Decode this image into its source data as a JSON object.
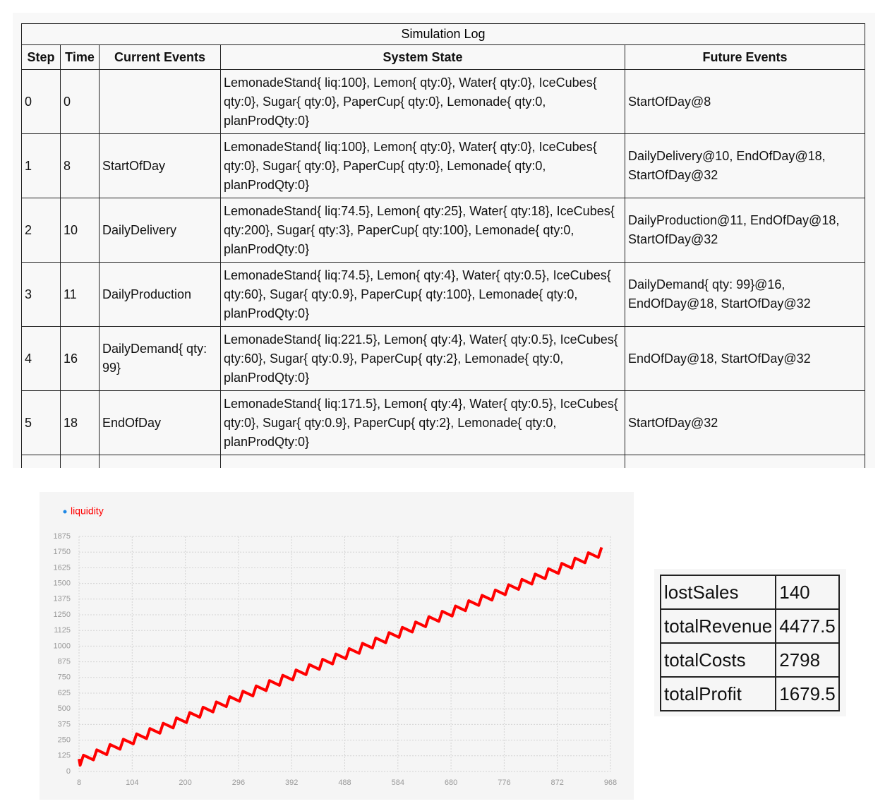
{
  "log": {
    "title": "Simulation Log",
    "headers": [
      "Step",
      "Time",
      "Current Events",
      "System State",
      "Future Events"
    ],
    "rows": [
      [
        0,
        0,
        null,
        "LemonadeStand{ liq:100}, Lemon{ qty:0}, Water{ qty:0}, IceCubes{ qty:0}, Sugar{ qty:0}, PaperCup{ qty:0}, Lemonade{ qty:0, planProdQty:0}",
        "StartOfDay@8"
      ],
      [
        1,
        8,
        "StartOfDay",
        "LemonadeStand{ liq:100}, Lemon{ qty:0}, Water{ qty:0}, IceCubes{ qty:0}, Sugar{ qty:0}, PaperCup{ qty:0}, Lemonade{ qty:0, planProdQty:0}",
        "DailyDelivery@10, EndOfDay@18, StartOfDay@32"
      ],
      [
        2,
        10,
        "DailyDelivery",
        "LemonadeStand{ liq:74.5}, Lemon{ qty:25}, Water{ qty:18}, IceCubes{ qty:200}, Sugar{ qty:3}, PaperCup{ qty:100}, Lemonade{ qty:0, planProdQty:0}",
        "DailyProduction@11, EndOfDay@18, StartOfDay@32"
      ],
      [
        3,
        11,
        "DailyProduction",
        "LemonadeStand{ liq:74.5}, Lemon{ qty:4}, Water{ qty:0.5}, IceCubes{ qty:60}, Sugar{ qty:0.9}, PaperCup{ qty:100}, Lemonade{ qty:0, planProdQty:0}",
        "DailyDemand{ qty: 99}@16, EndOfDay@18, StartOfDay@32"
      ],
      [
        4,
        16,
        "DailyDemand{ qty: 99}",
        "LemonadeStand{ liq:221.5}, Lemon{ qty:4}, Water{ qty:0.5}, IceCubes{ qty:60}, Sugar{ qty:0.9}, PaperCup{ qty:2}, Lemonade{ qty:0, planProdQty:0}",
        "EndOfDay@18, StartOfDay@32"
      ],
      [
        5,
        18,
        "EndOfDay",
        "LemonadeStand{ liq:171.5}, Lemon{ qty:4}, Water{ qty:0.5}, IceCubes{ qty:0}, Sugar{ qty:0.9}, PaperCup{ qty:2}, Lemonade{ qty:0, planProdQty:0}",
        "StartOfDay@32"
      ]
    ]
  },
  "chart_data": {
    "type": "line",
    "grid": true,
    "x": [
      8,
      10,
      16,
      34,
      40,
      58,
      64,
      82,
      88,
      106,
      112,
      130,
      136,
      154,
      160,
      178,
      184,
      202,
      208,
      226,
      232,
      250,
      256,
      274,
      280,
      298,
      304,
      322,
      328,
      346,
      352,
      370,
      376,
      394,
      400,
      418,
      424,
      442,
      448,
      466,
      472,
      490,
      496,
      514,
      520,
      538,
      544,
      562,
      568,
      586,
      592,
      610,
      616,
      634,
      640,
      658,
      664,
      682,
      688,
      706,
      712,
      730,
      736,
      754,
      760,
      778,
      784,
      802,
      808,
      826,
      832,
      850,
      856,
      874,
      880,
      898,
      904,
      922,
      928,
      946,
      952
    ],
    "series": [
      {
        "name": "liquidity",
        "color": "#ff0000",
        "values": [
          100,
          50,
          130,
          92.5,
          172.5,
          135,
          215,
          177.5,
          257.5,
          220,
          300,
          262.5,
          342.5,
          305,
          385,
          347.5,
          427.5,
          390,
          470,
          432.5,
          512.5,
          475,
          555,
          517.5,
          597.5,
          560,
          640,
          602.5,
          682.5,
          645,
          725,
          687.5,
          767.5,
          730,
          810,
          772.5,
          852.5,
          815,
          895,
          857.5,
          937.5,
          900,
          980,
          942.5,
          1022.5,
          985,
          1065,
          1027.5,
          1107.5,
          1070,
          1150,
          1112.5,
          1192.5,
          1155,
          1235,
          1197.5,
          1277.5,
          1240,
          1320,
          1282.5,
          1362.5,
          1325,
          1405,
          1367.5,
          1447.5,
          1410,
          1490,
          1452.5,
          1532.5,
          1495,
          1575,
          1537.5,
          1617.5,
          1580,
          1660,
          1622.5,
          1702.5,
          1665,
          1745,
          1707.5,
          1787.5
        ]
      }
    ],
    "xlim": [
      8,
      968
    ],
    "xticks": [
      8,
      104,
      200,
      296,
      392,
      488,
      584,
      680,
      776,
      872,
      968
    ],
    "ylim": [
      0,
      1875
    ],
    "yticks": [
      0,
      125,
      250,
      375,
      500,
      625,
      750,
      875,
      1000,
      1125,
      1250,
      1375,
      1500,
      1625,
      1750,
      1875
    ]
  },
  "summary": {
    "rows": [
      [
        "lostSales",
        140
      ],
      [
        "totalRevenue",
        4477.5
      ],
      [
        "totalCosts",
        2798
      ],
      [
        "totalProfit",
        1679.5
      ]
    ]
  }
}
